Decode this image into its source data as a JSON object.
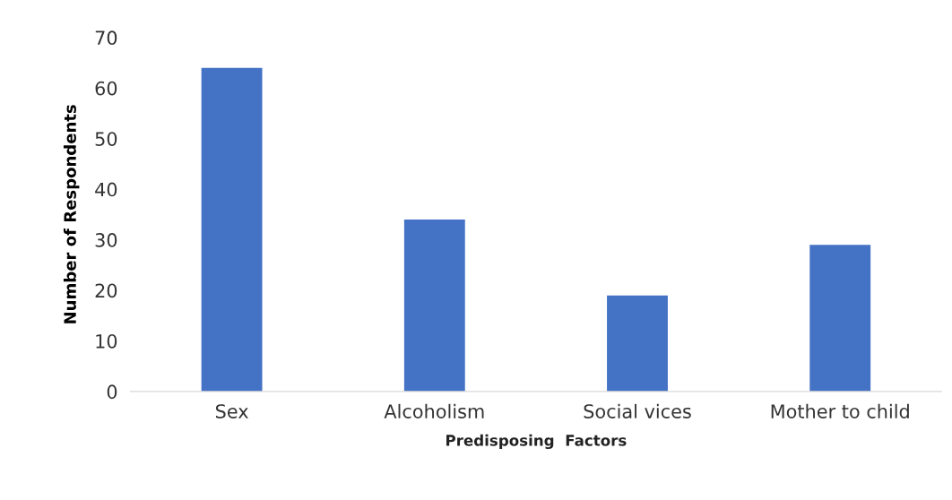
{
  "chart_data": {
    "type": "bar",
    "xlabel": "Predisposing  Factors",
    "ylabel": "Number of Respondents",
    "categories": [
      "Sex",
      "Alcoholism",
      "Social vices",
      "Mother to child"
    ],
    "values": [
      64,
      34,
      19,
      29
    ],
    "color": "#4472c4",
    "ylim": [
      0,
      70
    ],
    "yticks": [
      0,
      10,
      20,
      30,
      40,
      50,
      60,
      70
    ],
    "grid": false,
    "legend": false
  }
}
